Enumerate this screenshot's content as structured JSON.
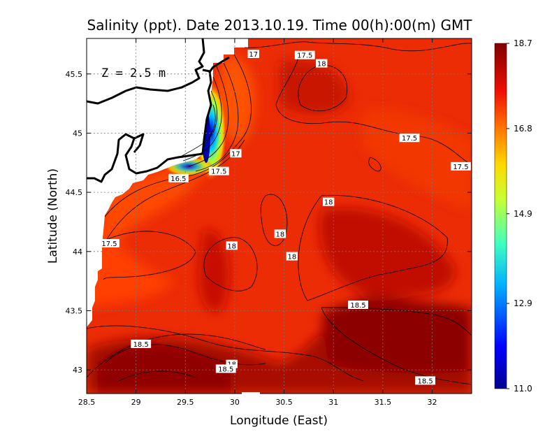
{
  "chart_data": {
    "type": "heatmap",
    "title": "Salinity (ppt). Date 2013.10.19. Time 00(h):00(m) GMT",
    "xlabel": "Longitude (East)",
    "ylabel": "Latitude (North)",
    "xlim": [
      28.5,
      32.4
    ],
    "ylim": [
      42.8,
      45.8
    ],
    "x_ticks": [
      "28.5",
      "29",
      "29.5",
      "30",
      "30.5",
      "31",
      "31.5",
      "32"
    ],
    "y_ticks": [
      "43",
      "43.5",
      "44",
      "44.5",
      "45",
      "45.5"
    ],
    "annotation": "Z = 2.5 m",
    "grid": true,
    "colorbar": {
      "range": [
        11.0,
        18.7
      ],
      "ticks": [
        "11.0",
        "12.9",
        "14.9",
        "16.8",
        "18.7"
      ]
    },
    "contour_labels": [
      {
        "text": "17",
        "lon": 30.19,
        "lat": 45.67
      },
      {
        "text": "17.5",
        "lon": 30.71,
        "lat": 45.66
      },
      {
        "text": "18",
        "lon": 30.88,
        "lat": 45.59
      },
      {
        "text": "17",
        "lon": 30.01,
        "lat": 44.83
      },
      {
        "text": "17.5",
        "lon": 29.84,
        "lat": 44.68
      },
      {
        "text": "16.5",
        "lon": 29.43,
        "lat": 44.62
      },
      {
        "text": "17.5",
        "lon": 31.77,
        "lat": 44.96
      },
      {
        "text": "17.5",
        "lon": 32.29,
        "lat": 44.72
      },
      {
        "text": "18",
        "lon": 30.95,
        "lat": 44.42
      },
      {
        "text": "18",
        "lon": 30.46,
        "lat": 44.15
      },
      {
        "text": "17.5",
        "lon": 28.73,
        "lat": 44.07
      },
      {
        "text": "18",
        "lon": 29.97,
        "lat": 44.05
      },
      {
        "text": "18",
        "lon": 30.58,
        "lat": 43.96
      },
      {
        "text": "18.5",
        "lon": 31.25,
        "lat": 43.55
      },
      {
        "text": "18.5",
        "lon": 29.05,
        "lat": 43.22
      },
      {
        "text": "18",
        "lon": 29.97,
        "lat": 43.05
      },
      {
        "text": "18.5",
        "lon": 29.91,
        "lat": 43.01
      },
      {
        "text": "18.5",
        "lon": 31.93,
        "lat": 42.91
      }
    ],
    "field_features": [
      {
        "feature": "low-salinity plume near coast",
        "lon": 29.65,
        "lat": 44.95,
        "salinity": 11.0
      },
      {
        "feature": "high-salinity core",
        "lon": 31.6,
        "lat": 43.4,
        "salinity": 18.7
      },
      {
        "feature": "high-salinity core",
        "lon": 29.5,
        "lat": 42.95,
        "salinity": 18.6
      },
      {
        "feature": "saline tongue",
        "lon": 31.0,
        "lat": 44.15,
        "salinity": 18.3
      }
    ]
  }
}
